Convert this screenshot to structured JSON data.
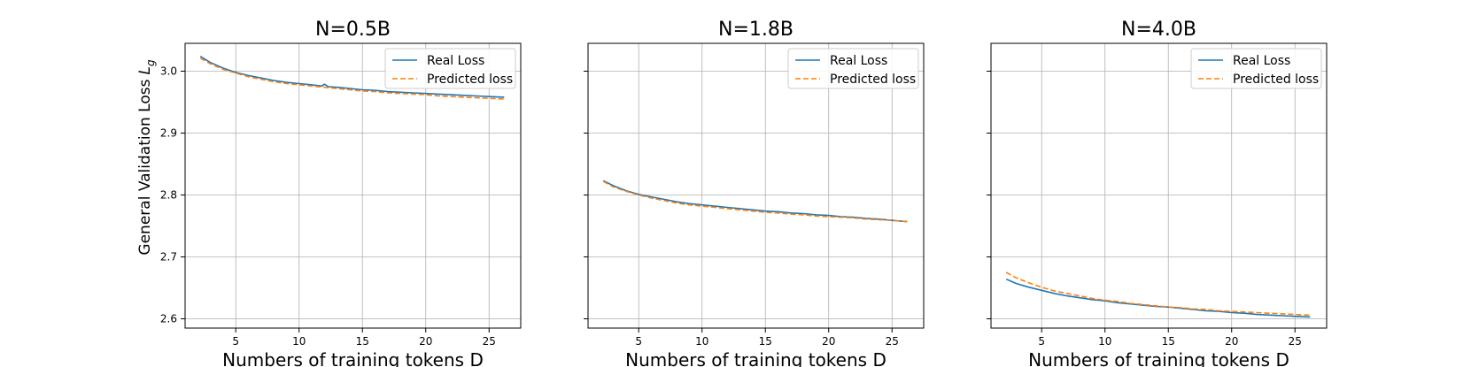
{
  "figure": {
    "ylabel": "General Validation Loss",
    "ylabel_sub": "g",
    "ylabel_italic": "L"
  },
  "chart_data": [
    {
      "type": "line",
      "title": "N=0.5B",
      "xlabel": "Numbers of training tokens D",
      "ylabel": "General Validation Loss L_g",
      "xlim": [
        1.0,
        27.5
      ],
      "ylim": [
        2.585,
        3.045
      ],
      "xticks": [
        5,
        10,
        15,
        20,
        25
      ],
      "yticks": [
        2.6,
        2.7,
        2.8,
        2.9,
        3.0
      ],
      "yticklabels": [
        "2.6",
        "2.7",
        "2.8",
        "2.9",
        "3.0"
      ],
      "show_yticklabels": true,
      "grid": true,
      "legend": "top-right",
      "series": [
        {
          "name": "Real Loss",
          "color": "#1f77b4",
          "dash": "solid",
          "x": [
            2.2,
            3.0,
            4.0,
            5.0,
            6.0,
            7.0,
            8.0,
            9.0,
            10.0,
            11.0,
            11.8,
            12.0,
            12.3,
            13.0,
            14.0,
            15.0,
            16.0,
            17.0,
            18.0,
            19.0,
            20.0,
            21.0,
            22.0,
            23.0,
            24.0,
            25.0,
            26.2
          ],
          "y": [
            3.024,
            3.014,
            3.005,
            2.998,
            2.993,
            2.989,
            2.985,
            2.982,
            2.98,
            2.978,
            2.976,
            2.979,
            2.975,
            2.974,
            2.972,
            2.97,
            2.969,
            2.967,
            2.966,
            2.965,
            2.964,
            2.963,
            2.962,
            2.961,
            2.96,
            2.959,
            2.958
          ]
        },
        {
          "name": "Predicted loss",
          "color": "#ff7f0e",
          "dash": "dashed",
          "x": [
            2.2,
            3.0,
            4.0,
            5.0,
            6.0,
            7.0,
            8.0,
            9.0,
            10.0,
            11.0,
            12.0,
            13.0,
            14.0,
            15.0,
            16.0,
            17.0,
            18.0,
            19.0,
            20.0,
            21.0,
            22.0,
            23.0,
            24.0,
            25.0,
            26.2
          ],
          "y": [
            3.021,
            3.012,
            3.003,
            2.997,
            2.991,
            2.987,
            2.983,
            2.98,
            2.978,
            2.976,
            2.974,
            2.972,
            2.97,
            2.968,
            2.967,
            2.965,
            2.964,
            2.963,
            2.962,
            2.96,
            2.959,
            2.958,
            2.957,
            2.956,
            2.955
          ]
        }
      ]
    },
    {
      "type": "line",
      "title": "N=1.8B",
      "xlabel": "Numbers of training tokens D",
      "xlim": [
        1.0,
        27.5
      ],
      "ylim": [
        2.585,
        3.045
      ],
      "xticks": [
        5,
        10,
        15,
        20,
        25
      ],
      "yticks": [
        2.6,
        2.7,
        2.8,
        2.9,
        3.0
      ],
      "show_yticklabels": false,
      "grid": true,
      "legend": "top-right",
      "series": [
        {
          "name": "Real Loss",
          "color": "#1f77b4",
          "dash": "solid",
          "x": [
            2.2,
            3.0,
            4.0,
            5.0,
            6.0,
            7.0,
            8.0,
            9.0,
            10.0,
            11.0,
            12.0,
            13.0,
            14.0,
            15.0,
            16.0,
            17.0,
            18.0,
            19.0,
            20.0,
            21.0,
            22.0,
            23.0,
            24.0,
            25.0,
            26.2
          ],
          "y": [
            2.823,
            2.815,
            2.807,
            2.801,
            2.797,
            2.793,
            2.789,
            2.786,
            2.784,
            2.782,
            2.78,
            2.778,
            2.776,
            2.774,
            2.773,
            2.771,
            2.77,
            2.768,
            2.767,
            2.765,
            2.764,
            2.762,
            2.761,
            2.759,
            2.757
          ]
        },
        {
          "name": "Predicted loss",
          "color": "#ff7f0e",
          "dash": "dashed",
          "x": [
            2.2,
            3.0,
            4.0,
            5.0,
            6.0,
            7.0,
            8.0,
            9.0,
            10.0,
            11.0,
            12.0,
            13.0,
            14.0,
            15.0,
            16.0,
            17.0,
            18.0,
            19.0,
            20.0,
            21.0,
            22.0,
            23.0,
            24.0,
            25.0,
            26.2
          ],
          "y": [
            2.822,
            2.813,
            2.806,
            2.8,
            2.795,
            2.791,
            2.787,
            2.784,
            2.782,
            2.78,
            2.778,
            2.776,
            2.774,
            2.772,
            2.771,
            2.769,
            2.768,
            2.766,
            2.765,
            2.764,
            2.763,
            2.761,
            2.76,
            2.759,
            2.757
          ]
        }
      ]
    },
    {
      "type": "line",
      "title": "N=4.0B",
      "xlabel": "Numbers of training tokens D",
      "xlim": [
        1.0,
        27.5
      ],
      "ylim": [
        2.585,
        3.045
      ],
      "xticks": [
        5,
        10,
        15,
        20,
        25
      ],
      "yticks": [
        2.6,
        2.7,
        2.8,
        2.9,
        3.0
      ],
      "show_yticklabels": false,
      "grid": true,
      "legend": "top-right",
      "series": [
        {
          "name": "Real Loss",
          "color": "#1f77b4",
          "dash": "solid",
          "x": [
            2.2,
            3.0,
            4.0,
            5.0,
            6.0,
            7.0,
            8.0,
            9.0,
            10.0,
            11.0,
            12.0,
            13.0,
            14.0,
            15.0,
            16.0,
            17.0,
            18.0,
            19.0,
            20.0,
            21.0,
            22.0,
            23.0,
            24.0,
            25.0,
            26.2
          ],
          "y": [
            2.664,
            2.657,
            2.651,
            2.646,
            2.641,
            2.637,
            2.634,
            2.631,
            2.629,
            2.626,
            2.624,
            2.622,
            2.62,
            2.619,
            2.617,
            2.615,
            2.613,
            2.612,
            2.61,
            2.609,
            2.607,
            2.606,
            2.605,
            2.604,
            2.603
          ]
        },
        {
          "name": "Predicted loss",
          "color": "#ff7f0e",
          "dash": "dashed",
          "x": [
            2.2,
            3.0,
            4.0,
            5.0,
            6.0,
            7.0,
            8.0,
            9.0,
            10.0,
            11.0,
            12.0,
            13.0,
            14.0,
            15.0,
            16.0,
            17.0,
            18.0,
            19.0,
            20.0,
            21.0,
            22.0,
            23.0,
            24.0,
            25.0,
            26.2
          ],
          "y": [
            2.675,
            2.666,
            2.658,
            2.651,
            2.645,
            2.641,
            2.637,
            2.633,
            2.63,
            2.628,
            2.625,
            2.623,
            2.621,
            2.619,
            2.618,
            2.616,
            2.615,
            2.613,
            2.612,
            2.611,
            2.61,
            2.609,
            2.608,
            2.607,
            2.606
          ]
        }
      ]
    }
  ]
}
